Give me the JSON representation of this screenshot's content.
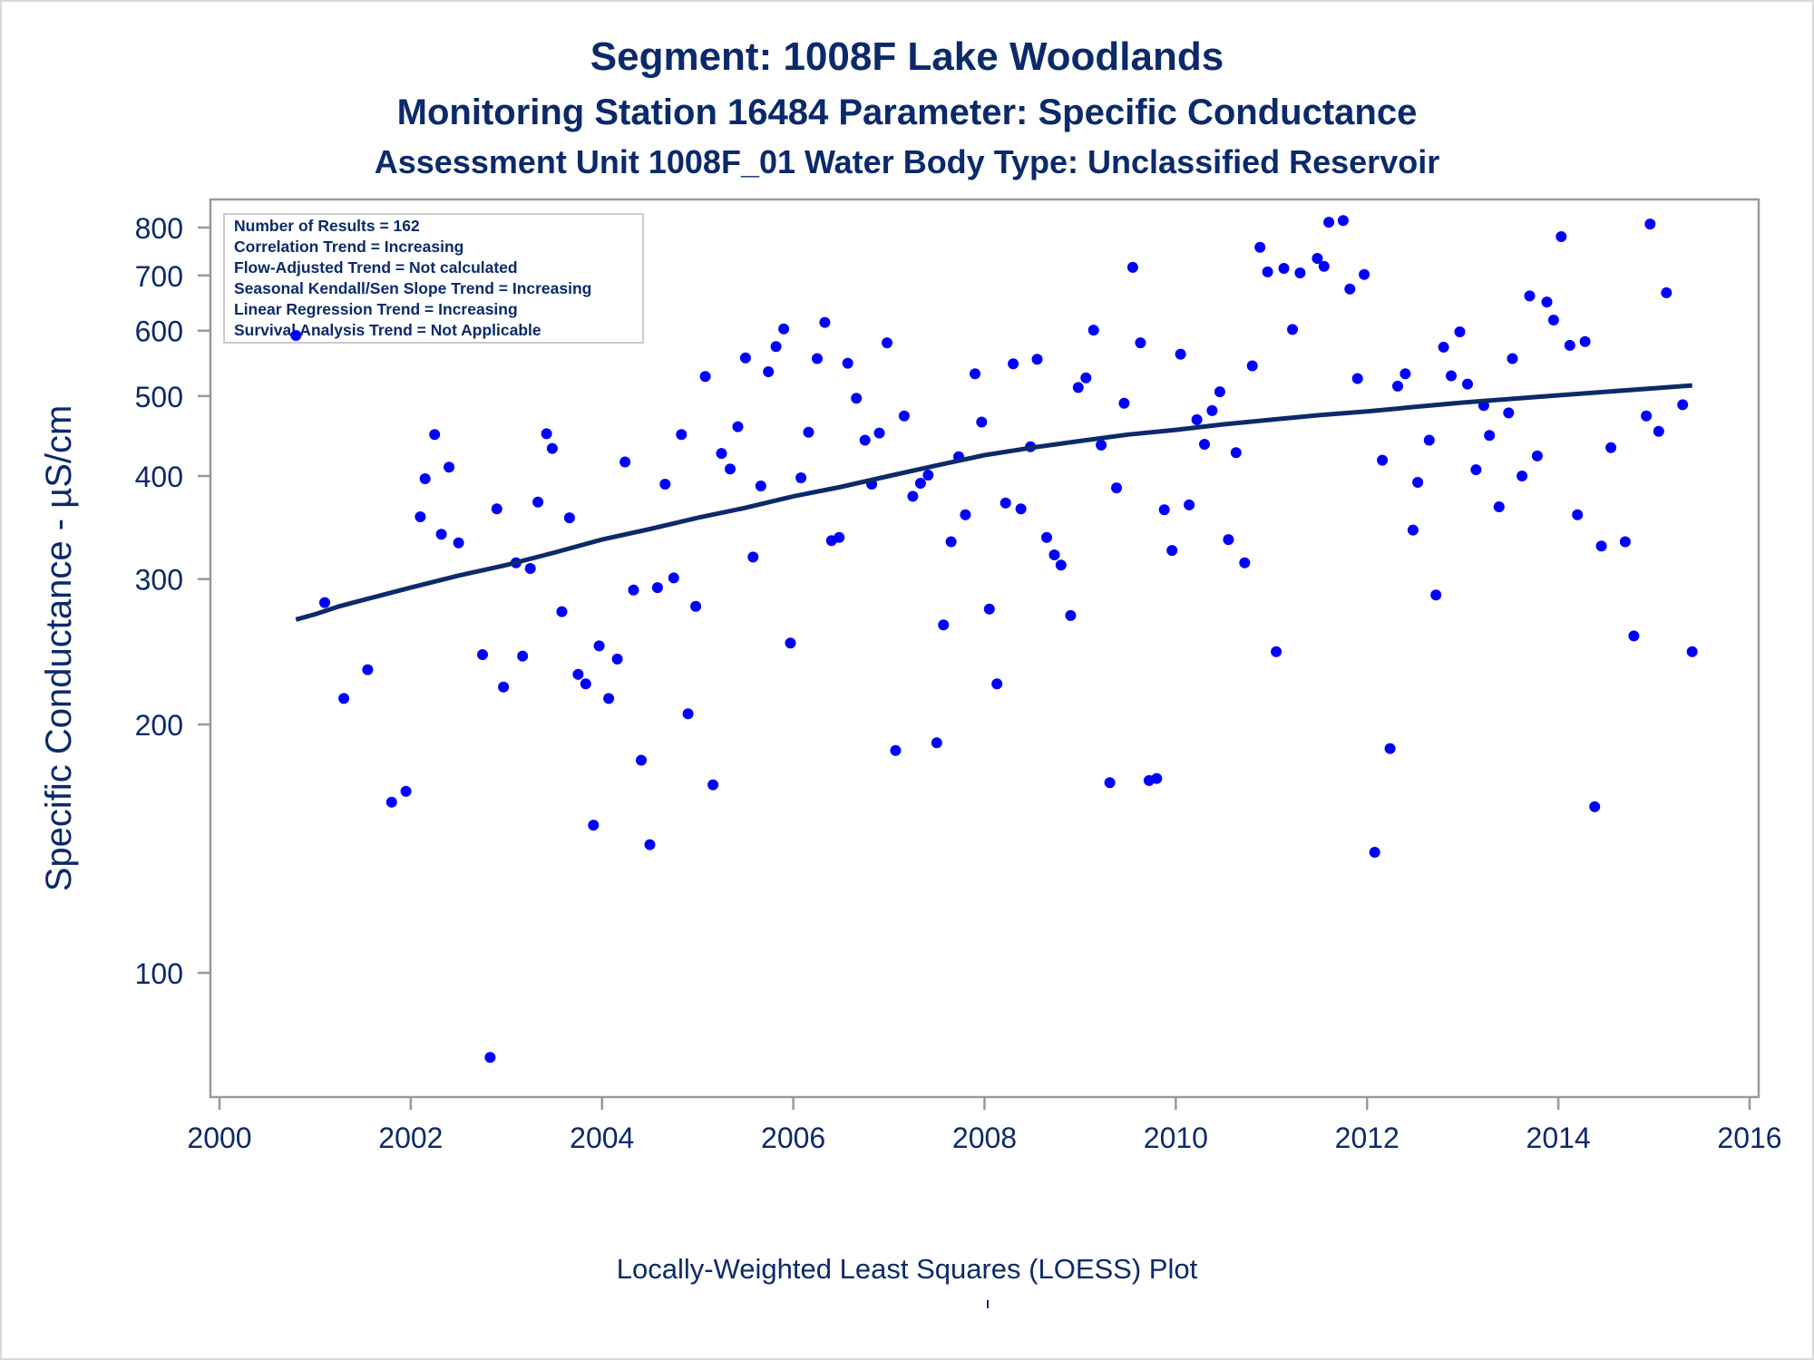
{
  "titles": {
    "line1": "Segment: 1008F  Lake Woodlands",
    "line2": "Monitoring Station 16484 Parameter: Specific Conductance",
    "line3": "Assessment Unit 1008F_01   Water Body Type: Unclassified Reservoir"
  },
  "footnote": "Locally-Weighted Least Squares (LOESS) Plot",
  "colors": {
    "text": "#0b2a6b",
    "points": "#0000ff",
    "trend": "#0b2a6b",
    "frame": "#999999"
  },
  "chart_data": {
    "type": "scatter",
    "ylabel": "Specific Conductance -  µS/cm",
    "xlabel": "",
    "y_scale": "log",
    "xlim": [
      2000,
      2016
    ],
    "ylim": [
      77,
      850
    ],
    "x_ticks": [
      2000,
      2002,
      2004,
      2006,
      2008,
      2010,
      2012,
      2014,
      2016
    ],
    "y_ticks": [
      100,
      200,
      300,
      400,
      500,
      600,
      700,
      800
    ],
    "stats_box": [
      "Number of Results = 162",
      "Correlation Trend = Increasing",
      "Flow-Adjusted Trend = Not calculated",
      "Seasonal Kendall/Sen Slope Trend = Increasing",
      "Linear Regression Trend = Increasing",
      "Survival Analysis Trend = Not Applicable"
    ],
    "series": [
      {
        "type": "scatter",
        "points": [
          [
            2000.8,
            592
          ],
          [
            2001.1,
            281
          ],
          [
            2001.3,
            215
          ],
          [
            2001.55,
            233
          ],
          [
            2001.8,
            161
          ],
          [
            2001.95,
            166
          ],
          [
            2002.1,
            357
          ],
          [
            2002.15,
            397
          ],
          [
            2002.25,
            449
          ],
          [
            2002.32,
            340
          ],
          [
            2002.4,
            410
          ],
          [
            2002.5,
            332
          ],
          [
            2002.75,
            243
          ],
          [
            2002.83,
            79
          ],
          [
            2002.9,
            365
          ],
          [
            2002.97,
            222
          ],
          [
            2003.1,
            314
          ],
          [
            2003.17,
            242
          ],
          [
            2003.25,
            309
          ],
          [
            2003.33,
            372
          ],
          [
            2003.42,
            450
          ],
          [
            2003.48,
            432
          ],
          [
            2003.58,
            274
          ],
          [
            2003.66,
            356
          ],
          [
            2003.75,
            230
          ],
          [
            2003.83,
            224
          ],
          [
            2003.91,
            151
          ],
          [
            2003.97,
            249
          ],
          [
            2004.07,
            215
          ],
          [
            2004.16,
            240
          ],
          [
            2004.24,
            416
          ],
          [
            2004.33,
            291
          ],
          [
            2004.41,
            181
          ],
          [
            2004.5,
            143
          ],
          [
            2004.58,
            293
          ],
          [
            2004.66,
            391
          ],
          [
            2004.75,
            301
          ],
          [
            2004.83,
            449
          ],
          [
            2004.9,
            206
          ],
          [
            2004.98,
            278
          ],
          [
            2005.08,
            528
          ],
          [
            2005.16,
            169
          ],
          [
            2005.25,
            426
          ],
          [
            2005.34,
            408
          ],
          [
            2005.42,
            459
          ],
          [
            2005.5,
            556
          ],
          [
            2005.58,
            319
          ],
          [
            2005.66,
            389
          ],
          [
            2005.74,
            535
          ],
          [
            2005.82,
            574
          ],
          [
            2005.9,
            603
          ],
          [
            2005.97,
            251
          ],
          [
            2006.08,
            398
          ],
          [
            2006.16,
            452
          ],
          [
            2006.25,
            555
          ],
          [
            2006.33,
            614
          ],
          [
            2006.4,
            334
          ],
          [
            2006.48,
            337
          ],
          [
            2006.57,
            548
          ],
          [
            2006.66,
            497
          ],
          [
            2006.75,
            442
          ],
          [
            2006.82,
            391
          ],
          [
            2006.9,
            451
          ],
          [
            2006.98,
            580
          ],
          [
            2007.07,
            186
          ],
          [
            2007.16,
            473
          ],
          [
            2007.25,
            378
          ],
          [
            2007.33,
            392
          ],
          [
            2007.41,
            401
          ],
          [
            2007.5,
            190
          ],
          [
            2007.57,
            264
          ],
          [
            2007.65,
            333
          ],
          [
            2007.73,
            422
          ],
          [
            2007.8,
            359
          ],
          [
            2007.9,
            532
          ],
          [
            2007.97,
            465
          ],
          [
            2008.05,
            276
          ],
          [
            2008.13,
            224
          ],
          [
            2008.22,
            371
          ],
          [
            2008.3,
            547
          ],
          [
            2008.38,
            365
          ],
          [
            2008.48,
            434
          ],
          [
            2008.55,
            554
          ],
          [
            2008.65,
            337
          ],
          [
            2008.73,
            321
          ],
          [
            2008.8,
            312
          ],
          [
            2008.9,
            271
          ],
          [
            2008.98,
            512
          ],
          [
            2009.06,
            526
          ],
          [
            2009.14,
            601
          ],
          [
            2009.22,
            436
          ],
          [
            2009.31,
            170
          ],
          [
            2009.38,
            387
          ],
          [
            2009.46,
            490
          ],
          [
            2009.55,
            716
          ],
          [
            2009.63,
            580
          ],
          [
            2009.72,
            171
          ],
          [
            2009.8,
            172
          ],
          [
            2009.88,
            364
          ],
          [
            2009.96,
            325
          ],
          [
            2010.05,
            562
          ],
          [
            2010.14,
            369
          ],
          [
            2010.22,
            468
          ],
          [
            2010.3,
            437
          ],
          [
            2010.38,
            480
          ],
          [
            2010.46,
            506
          ],
          [
            2010.55,
            335
          ],
          [
            2010.63,
            427
          ],
          [
            2010.72,
            314
          ],
          [
            2010.8,
            544
          ],
          [
            2010.88,
            757
          ],
          [
            2010.96,
            707
          ],
          [
            2011.05,
            245
          ],
          [
            2011.13,
            714
          ],
          [
            2011.22,
            602
          ],
          [
            2011.3,
            705
          ],
          [
            2011.48,
            734
          ],
          [
            2011.55,
            718
          ],
          [
            2011.6,
            812
          ],
          [
            2011.75,
            816
          ],
          [
            2011.82,
            674
          ],
          [
            2011.9,
            525
          ],
          [
            2011.97,
            702
          ],
          [
            2012.08,
            140
          ],
          [
            2012.16,
            418
          ],
          [
            2012.24,
            187
          ],
          [
            2012.32,
            514
          ],
          [
            2012.4,
            532
          ],
          [
            2012.48,
            344
          ],
          [
            2012.53,
            393
          ],
          [
            2012.65,
            442
          ],
          [
            2012.72,
            287
          ],
          [
            2012.8,
            573
          ],
          [
            2012.88,
            529
          ],
          [
            2012.97,
            598
          ],
          [
            2013.05,
            517
          ],
          [
            2013.14,
            407
          ],
          [
            2013.22,
            487
          ],
          [
            2013.28,
            448
          ],
          [
            2013.38,
            367
          ],
          [
            2013.48,
            477
          ],
          [
            2013.52,
            555
          ],
          [
            2013.62,
            400
          ],
          [
            2013.7,
            661
          ],
          [
            2013.78,
            423
          ],
          [
            2013.88,
            650
          ],
          [
            2013.95,
            618
          ],
          [
            2014.03,
            780
          ],
          [
            2014.12,
            576
          ],
          [
            2014.2,
            359
          ],
          [
            2014.28,
            582
          ],
          [
            2014.38,
            159
          ],
          [
            2014.45,
            329
          ],
          [
            2014.55,
            433
          ],
          [
            2014.7,
            333
          ],
          [
            2014.79,
            256
          ],
          [
            2014.92,
            473
          ],
          [
            2014.96,
            808
          ],
          [
            2015.05,
            453
          ],
          [
            2015.13,
            667
          ],
          [
            2015.3,
            488
          ],
          [
            2015.4,
            245
          ]
        ]
      },
      {
        "type": "line",
        "name": "",
        "points": [
          [
            2000.8,
            268
          ],
          [
            2001.0,
            272
          ],
          [
            2001.25,
            278
          ],
          [
            2001.5,
            283
          ],
          [
            2001.75,
            288
          ],
          [
            2002.0,
            293
          ],
          [
            2002.5,
            303
          ],
          [
            2003.0,
            312
          ],
          [
            2003.5,
            323
          ],
          [
            2004.0,
            335
          ],
          [
            2004.5,
            345
          ],
          [
            2005.0,
            356
          ],
          [
            2005.5,
            366
          ],
          [
            2006.0,
            378
          ],
          [
            2006.5,
            388
          ],
          [
            2007.0,
            400
          ],
          [
            2007.5,
            412
          ],
          [
            2008.0,
            424
          ],
          [
            2008.5,
            433
          ],
          [
            2009.0,
            441
          ],
          [
            2009.5,
            449
          ],
          [
            2010.0,
            455
          ],
          [
            2010.5,
            462
          ],
          [
            2011.0,
            468
          ],
          [
            2011.5,
            474
          ],
          [
            2012.0,
            479
          ],
          [
            2012.5,
            485
          ],
          [
            2013.0,
            491
          ],
          [
            2013.5,
            496
          ],
          [
            2014.0,
            501
          ],
          [
            2014.5,
            506
          ],
          [
            2015.0,
            511
          ],
          [
            2015.4,
            515
          ]
        ]
      }
    ]
  }
}
